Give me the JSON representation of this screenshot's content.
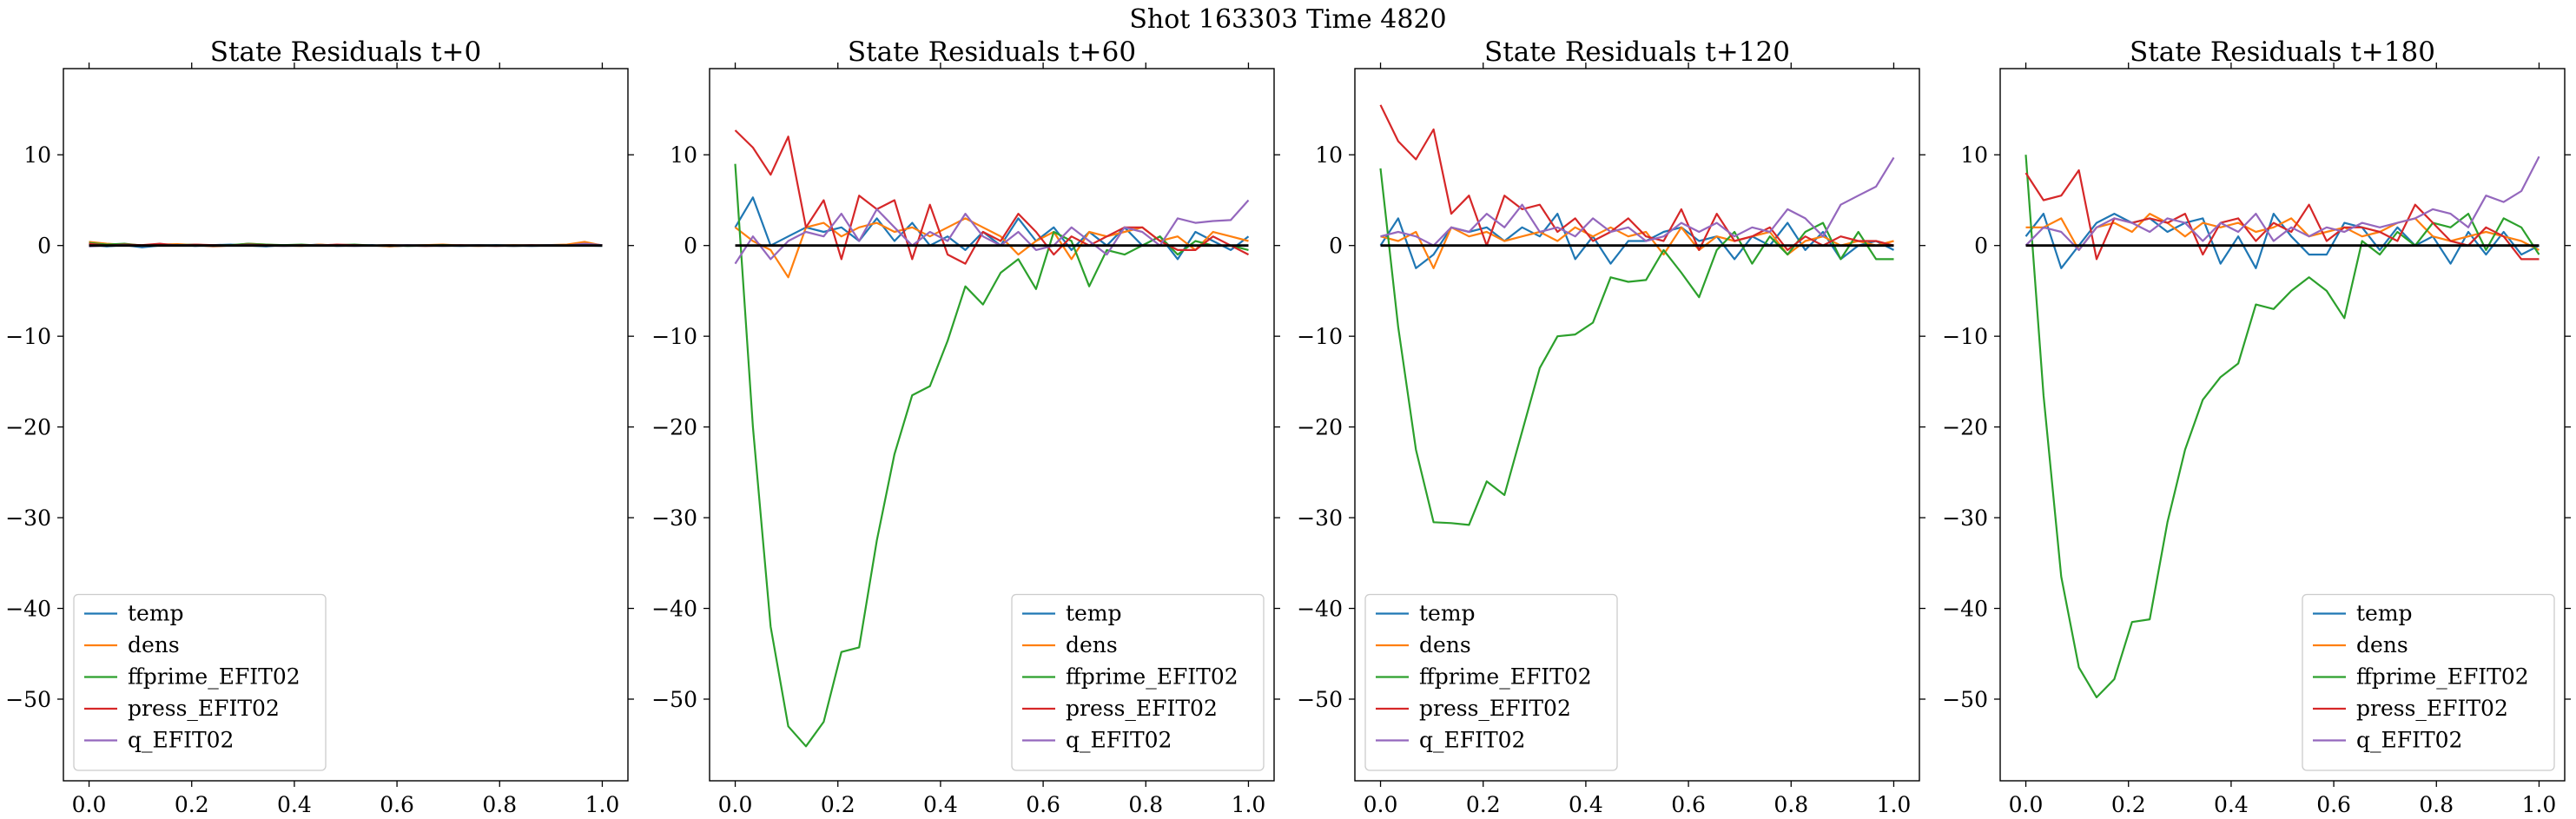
{
  "figure": {
    "suptitle": "Shot 163303   Time 4820"
  },
  "style": {
    "series_colors": {
      "temp": "#1f77b4",
      "dens": "#ff7f0e",
      "ffprime_EFIT02": "#2ca02c",
      "press_EFIT02": "#d62728",
      "q_EFIT02": "#9467bd"
    },
    "zero_line_color": "#000000"
  },
  "chart_data": [
    {
      "type": "line",
      "title": "State Residuals t+0",
      "xlim": [
        -0.05,
        1.05
      ],
      "ylim": [
        -59,
        19.5
      ],
      "xticks": [
        "0.0",
        "0.2",
        "0.4",
        "0.6",
        "0.8",
        "1.0"
      ],
      "yticks": [
        "10",
        "0",
        "−10",
        "−20",
        "−30",
        "−40",
        "−50"
      ],
      "ytick_values": [
        10,
        0,
        -10,
        -20,
        -30,
        -40,
        -50
      ],
      "xtick_values": [
        0,
        0.2,
        0.4,
        0.6,
        0.8,
        1.0
      ],
      "legend_position": "lower-left",
      "x": [
        0.0,
        0.0345,
        0.069,
        0.1034,
        0.1379,
        0.1724,
        0.2069,
        0.2414,
        0.2759,
        0.3103,
        0.3448,
        0.3793,
        0.4138,
        0.4483,
        0.4828,
        0.5172,
        0.5517,
        0.5862,
        0.6207,
        0.6552,
        0.6897,
        0.7241,
        0.7586,
        0.7931,
        0.8276,
        0.8621,
        0.8966,
        0.931,
        0.9655,
        1.0
      ],
      "series": [
        {
          "name": "temp",
          "values": [
            0.1,
            -0.1,
            0.05,
            -0.2,
            0.0,
            0.1,
            -0.05,
            0.05,
            0.1,
            0.0,
            -0.1,
            0.05,
            0.0,
            0.1,
            -0.05,
            0.0,
            0.05,
            -0.1,
            0.0,
            0.05,
            0.0,
            -0.05,
            0.0,
            0.05,
            0.0,
            -0.05,
            0.0,
            0.05,
            0.0,
            -0.05
          ]
        },
        {
          "name": "dens",
          "values": [
            0.4,
            0.2,
            0.1,
            0.0,
            0.1,
            0.15,
            0.05,
            -0.1,
            0.0,
            0.2,
            0.1,
            0.0,
            -0.05,
            0.1,
            0.0,
            0.05,
            0.0,
            -0.1,
            0.0,
            0.05,
            0.1,
            0.0,
            -0.05,
            0.0,
            0.05,
            0.0,
            0.05,
            0.1,
            0.4,
            0.0
          ]
        },
        {
          "name": "ffprime_EFIT02",
          "values": [
            0.3,
            0.1,
            0.2,
            0.0,
            0.1,
            0.05,
            0.1,
            0.0,
            0.05,
            0.2,
            0.1,
            0.05,
            0.1,
            0.0,
            0.05,
            0.1,
            0.0,
            0.05,
            -0.05,
            0.0,
            0.05,
            0.0,
            0.05,
            0.0,
            -0.05,
            0.0,
            0.05,
            0.0,
            0.1,
            0.0
          ]
        },
        {
          "name": "press_EFIT02",
          "values": [
            0.2,
            0.0,
            0.1,
            0.05,
            0.2,
            0.0,
            0.1,
            0.05,
            0.0,
            0.1,
            0.05,
            0.0,
            0.05,
            0.0,
            0.1,
            0.05,
            0.0,
            0.05,
            0.0,
            -0.05,
            0.0,
            0.05,
            0.0,
            -0.05,
            0.0,
            0.05,
            0.0,
            0.0,
            0.1,
            0.0
          ]
        },
        {
          "name": "q_EFIT02",
          "values": [
            -0.1,
            0.0,
            0.05,
            -0.05,
            0.0,
            0.05,
            0.0,
            -0.05,
            0.0,
            0.05,
            0.0,
            -0.05,
            0.0,
            0.05,
            0.0,
            -0.05,
            0.0,
            0.0,
            0.05,
            0.0,
            -0.05,
            0.0,
            0.05,
            0.0,
            -0.05,
            0.0,
            0.05,
            0.0,
            0.2,
            0.05
          ]
        }
      ]
    },
    {
      "type": "line",
      "title": "State Residuals t+60",
      "xlim": [
        -0.05,
        1.05
      ],
      "ylim": [
        -59,
        19.5
      ],
      "xticks": [
        "0.0",
        "0.2",
        "0.4",
        "0.6",
        "0.8",
        "1.0"
      ],
      "yticks": [
        "10",
        "0",
        "−10",
        "−20",
        "−30",
        "−40",
        "−50"
      ],
      "ytick_values": [
        10,
        0,
        -10,
        -20,
        -30,
        -40,
        -50
      ],
      "xtick_values": [
        0,
        0.2,
        0.4,
        0.6,
        0.8,
        1.0
      ],
      "legend_position": "lower-right",
      "x": [
        0.0,
        0.0345,
        0.069,
        0.1034,
        0.1379,
        0.1724,
        0.2069,
        0.2414,
        0.2759,
        0.3103,
        0.3448,
        0.3793,
        0.4138,
        0.4483,
        0.4828,
        0.5172,
        0.5517,
        0.5862,
        0.6207,
        0.6552,
        0.6897,
        0.7241,
        0.7586,
        0.7931,
        0.8276,
        0.8621,
        0.8966,
        0.931,
        0.9655,
        1.0
      ],
      "series": [
        {
          "name": "temp",
          "values": [
            2.0,
            5.3,
            0.0,
            1.0,
            2.0,
            1.5,
            2.0,
            0.5,
            3.0,
            0.5,
            2.5,
            0.0,
            1.0,
            -0.5,
            1.5,
            0.0,
            3.0,
            0.5,
            2.0,
            -0.5,
            1.5,
            0.0,
            2.0,
            0.0,
            1.0,
            -1.5,
            1.5,
            0.5,
            -0.5,
            1.0
          ]
        },
        {
          "name": "dens",
          "values": [
            2.0,
            0.5,
            -0.5,
            -3.5,
            2.0,
            2.5,
            1.0,
            2.0,
            2.5,
            1.5,
            2.0,
            1.0,
            2.0,
            3.0,
            2.0,
            1.0,
            -1.0,
            0.5,
            1.5,
            -1.5,
            1.5,
            1.0,
            1.5,
            2.0,
            0.5,
            1.0,
            -0.5,
            1.5,
            1.0,
            0.5
          ]
        },
        {
          "name": "ffprime_EFIT02",
          "values": [
            9.0,
            -20.0,
            -42.0,
            -53.0,
            -55.2,
            -52.5,
            -44.8,
            -44.3,
            -32.5,
            -23.0,
            -16.5,
            -15.5,
            -10.5,
            -4.5,
            -6.5,
            -3.0,
            -1.5,
            -4.8,
            1.5,
            0.5,
            -4.5,
            -0.5,
            -1.0,
            0.0,
            1.0,
            -1.0,
            0.5,
            0.0,
            0.0,
            -0.5
          ]
        },
        {
          "name": "press_EFIT02",
          "values": [
            12.7,
            10.8,
            7.8,
            12.0,
            2.0,
            5.0,
            -1.5,
            5.5,
            4.0,
            5.0,
            -1.5,
            4.5,
            -1.0,
            -2.0,
            1.5,
            0.5,
            3.5,
            1.5,
            -1.0,
            1.0,
            0.0,
            1.0,
            2.0,
            2.0,
            0.5,
            -0.5,
            -0.5,
            1.0,
            0.0,
            -1.0
          ]
        },
        {
          "name": "q_EFIT02",
          "values": [
            -2.0,
            1.0,
            -1.5,
            0.5,
            1.5,
            1.0,
            3.5,
            0.5,
            4.0,
            2.0,
            0.0,
            1.5,
            0.5,
            3.5,
            1.0,
            0.0,
            1.5,
            -0.5,
            0.0,
            2.0,
            0.5,
            -1.0,
            2.0,
            1.5,
            0.0,
            3.0,
            2.5,
            2.7,
            2.8,
            5.0
          ]
        }
      ]
    },
    {
      "type": "line",
      "title": "State Residuals t+120",
      "xlim": [
        -0.05,
        1.05
      ],
      "ylim": [
        -59,
        19.5
      ],
      "xticks": [
        "0.0",
        "0.2",
        "0.4",
        "0.6",
        "0.8",
        "1.0"
      ],
      "yticks": [
        "10",
        "0",
        "−10",
        "−20",
        "−30",
        "−40",
        "−50"
      ],
      "ytick_values": [
        10,
        0,
        -10,
        -20,
        -30,
        -40,
        -50
      ],
      "xtick_values": [
        0,
        0.2,
        0.4,
        0.6,
        0.8,
        1.0
      ],
      "legend_position": "lower-left",
      "x": [
        0.0,
        0.0345,
        0.069,
        0.1034,
        0.1379,
        0.1724,
        0.2069,
        0.2414,
        0.2759,
        0.3103,
        0.3448,
        0.3793,
        0.4138,
        0.4483,
        0.4828,
        0.5172,
        0.5517,
        0.5862,
        0.6207,
        0.6552,
        0.6897,
        0.7241,
        0.7586,
        0.7931,
        0.8276,
        0.8621,
        0.8966,
        0.931,
        0.9655,
        1.0
      ],
      "series": [
        {
          "name": "temp",
          "values": [
            0.0,
            3.0,
            -2.5,
            -1.0,
            2.0,
            1.5,
            2.0,
            0.5,
            2.0,
            1.0,
            3.5,
            -1.5,
            1.0,
            -2.0,
            0.5,
            0.5,
            1.5,
            2.0,
            0.5,
            1.0,
            -1.5,
            1.0,
            0.0,
            2.5,
            -0.5,
            1.5,
            -1.5,
            0.0,
            0.5,
            -0.5
          ]
        },
        {
          "name": "dens",
          "values": [
            1.0,
            0.5,
            1.5,
            -2.5,
            2.0,
            1.0,
            1.5,
            0.5,
            1.0,
            1.5,
            0.5,
            2.0,
            1.0,
            2.0,
            1.0,
            1.5,
            -1.0,
            2.0,
            -0.5,
            1.0,
            0.5,
            1.0,
            1.5,
            -1.0,
            0.5,
            1.0,
            0.0,
            0.5,
            0.0,
            0.5
          ]
        },
        {
          "name": "ffprime_EFIT02",
          "values": [
            8.5,
            -9.0,
            -22.5,
            -30.5,
            -30.6,
            -30.8,
            -26.0,
            -27.5,
            -20.5,
            -13.5,
            -10.0,
            -9.8,
            -8.5,
            -3.5,
            -4.0,
            -3.8,
            -0.5,
            -3.0,
            -5.7,
            -0.5,
            1.5,
            -2.0,
            1.0,
            -1.0,
            1.5,
            2.5,
            -1.5,
            1.5,
            -1.5,
            -1.5
          ]
        },
        {
          "name": "press_EFIT02",
          "values": [
            15.5,
            11.5,
            9.5,
            12.8,
            3.5,
            5.5,
            0.0,
            5.5,
            4.0,
            4.5,
            1.5,
            3.0,
            0.5,
            1.5,
            3.0,
            1.0,
            0.5,
            4.0,
            -0.5,
            3.5,
            0.5,
            1.0,
            2.0,
            -0.5,
            1.0,
            0.0,
            1.0,
            0.5,
            0.5,
            0.0
          ]
        },
        {
          "name": "q_EFIT02",
          "values": [
            1.0,
            1.5,
            1.0,
            0.0,
            2.0,
            1.5,
            3.5,
            2.0,
            4.5,
            1.5,
            2.0,
            1.0,
            3.0,
            1.5,
            2.0,
            0.5,
            1.0,
            2.5,
            1.5,
            2.5,
            1.0,
            2.0,
            1.5,
            4.0,
            3.0,
            1.0,
            4.5,
            5.5,
            6.5,
            9.7
          ]
        }
      ]
    },
    {
      "type": "line",
      "title": "State Residuals t+180",
      "xlim": [
        -0.05,
        1.05
      ],
      "ylim": [
        -59,
        19.5
      ],
      "xticks": [
        "0.0",
        "0.2",
        "0.4",
        "0.6",
        "0.8",
        "1.0"
      ],
      "yticks": [
        "10",
        "0",
        "−10",
        "−20",
        "−30",
        "−40",
        "−50"
      ],
      "ytick_values": [
        10,
        0,
        -10,
        -20,
        -30,
        -40,
        -50
      ],
      "xtick_values": [
        0,
        0.2,
        0.4,
        0.6,
        0.8,
        1.0
      ],
      "legend_position": "lower-right",
      "x": [
        0.0,
        0.0345,
        0.069,
        0.1034,
        0.1379,
        0.1724,
        0.2069,
        0.2414,
        0.2759,
        0.3103,
        0.3448,
        0.3793,
        0.4138,
        0.4483,
        0.4828,
        0.5172,
        0.5517,
        0.5862,
        0.6207,
        0.6552,
        0.6897,
        0.7241,
        0.7586,
        0.7931,
        0.8276,
        0.8621,
        0.8966,
        0.931,
        0.9655,
        1.0
      ],
      "series": [
        {
          "name": "temp",
          "values": [
            1.0,
            3.5,
            -2.5,
            0.0,
            2.5,
            3.5,
            2.5,
            3.0,
            1.5,
            2.5,
            3.0,
            -2.0,
            1.0,
            -2.5,
            3.5,
            1.0,
            -1.0,
            -1.0,
            2.5,
            2.0,
            -0.5,
            2.0,
            0.0,
            1.0,
            -2.0,
            1.5,
            -1.0,
            1.5,
            -1.0,
            0.0
          ]
        },
        {
          "name": "dens",
          "values": [
            2.0,
            2.0,
            3.0,
            -0.5,
            2.0,
            2.5,
            1.5,
            3.5,
            2.5,
            1.0,
            2.5,
            2.0,
            2.5,
            1.5,
            2.0,
            3.0,
            1.0,
            1.5,
            2.0,
            1.0,
            1.5,
            2.5,
            3.0,
            1.0,
            0.5,
            1.0,
            1.5,
            1.0,
            0.5,
            -0.5
          ]
        },
        {
          "name": "ffprime_EFIT02",
          "values": [
            10.0,
            -16.5,
            -36.5,
            -46.5,
            -49.8,
            -47.8,
            -41.5,
            -41.2,
            -30.5,
            -22.5,
            -17.0,
            -14.5,
            -13.0,
            -6.5,
            -7.0,
            -5.0,
            -3.5,
            -5.0,
            -8.0,
            0.5,
            -1.0,
            1.5,
            0.0,
            2.5,
            2.0,
            3.5,
            -0.5,
            3.0,
            2.0,
            -1.0
          ]
        },
        {
          "name": "press_EFIT02",
          "values": [
            8.0,
            5.0,
            5.5,
            8.3,
            -1.5,
            3.0,
            2.5,
            3.0,
            2.5,
            3.5,
            -1.0,
            2.5,
            3.0,
            0.5,
            2.5,
            1.5,
            4.5,
            0.5,
            2.0,
            2.0,
            1.5,
            0.5,
            4.5,
            2.5,
            0.5,
            0.0,
            2.0,
            1.0,
            -1.5,
            -1.5
          ]
        },
        {
          "name": "q_EFIT02",
          "values": [
            0.0,
            2.0,
            1.5,
            -0.5,
            2.0,
            3.0,
            2.5,
            1.5,
            3.0,
            2.5,
            0.5,
            2.5,
            1.5,
            3.5,
            0.5,
            2.0,
            1.0,
            2.0,
            1.5,
            2.5,
            2.0,
            2.5,
            3.0,
            4.0,
            3.5,
            2.0,
            5.5,
            4.8,
            6.0,
            9.8
          ]
        }
      ]
    }
  ]
}
